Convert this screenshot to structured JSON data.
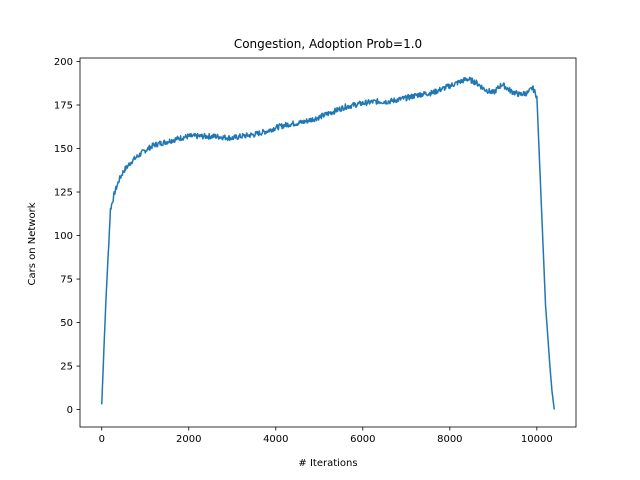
{
  "chart_data": {
    "type": "line",
    "title": "Congestion, Adoption Prob=1.0",
    "xlabel": "# Iterations",
    "ylabel": "Cars on Network",
    "xlim": [
      -500,
      10900
    ],
    "ylim": [
      -10,
      202
    ],
    "xticks": [
      0,
      2000,
      4000,
      6000,
      8000,
      10000
    ],
    "yticks": [
      0,
      25,
      50,
      75,
      100,
      125,
      150,
      175,
      200
    ],
    "grid": false,
    "legend": null,
    "colors": {
      "line": "#1f77b4"
    },
    "series": [
      {
        "x": [
          0,
          50,
          100,
          150,
          200,
          300,
          400,
          500,
          600,
          700,
          800,
          1000,
          1200,
          1500,
          1800,
          2000,
          2300,
          2600,
          3000,
          3200,
          3500,
          3800,
          4000,
          4300,
          4600,
          5000,
          5300,
          5600,
          6000,
          6300,
          6600,
          7000,
          7300,
          7600,
          8000,
          8200,
          8400,
          8600,
          8800,
          9000,
          9200,
          9400,
          9600,
          9800,
          9900,
          10000,
          10100,
          10200,
          10300,
          10350,
          10400
        ],
        "y": [
          3,
          35,
          65,
          90,
          115,
          125,
          132,
          137,
          140,
          143,
          145,
          149,
          152,
          154,
          156,
          157,
          157,
          157,
          156,
          157,
          158,
          160,
          162,
          164,
          165,
          168,
          171,
          174,
          176,
          177,
          177,
          179,
          181,
          182,
          186,
          188,
          190,
          188,
          184,
          182,
          187,
          183,
          181,
          182,
          185,
          180,
          120,
          60,
          25,
          10,
          0
        ]
      }
    ]
  }
}
